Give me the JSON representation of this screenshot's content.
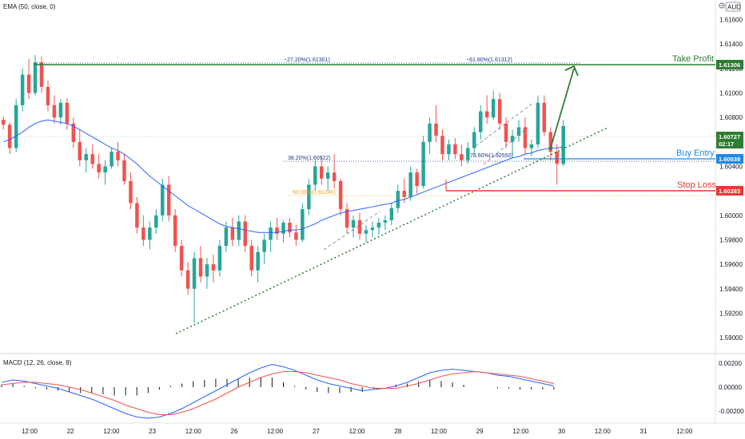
{
  "indicators": {
    "ema_label": "EMA (50, close, 0)",
    "macd_label": "MACD (12, 26, close, 9)"
  },
  "settings_icon": "gear-icon",
  "currency_badge": "AUD",
  "colors": {
    "up": "#26a69a",
    "down": "#ef5350",
    "ema": "#2962ff",
    "take_profit": "#2e7d32",
    "buy_entry": "#1e88e5",
    "stop_loss": "#e53935",
    "price_tag": "#2e7d32",
    "fib_blue": "#1e3a8a",
    "fib_orange": "#f9a825",
    "trendline": "#2e7d32"
  },
  "chart_data": [
    {
      "type": "candlestick",
      "ylim": [
        1.5887,
        1.6176
      ],
      "y_ticks": [
        1.59,
        1.592,
        1.594,
        1.596,
        1.598,
        1.6,
        1.602,
        1.604,
        1.606,
        1.608,
        1.61,
        1.612,
        1.614,
        1.616
      ],
      "y_tick_labels": [
        "1.59000",
        "1.59200",
        "1.59400",
        "1.59600",
        "1.59800",
        "1.60000",
        "1.60200",
        "1.60400",
        "1.60600",
        "1.60800",
        "1.61000",
        "1.61200",
        "1.61400",
        "1.61600"
      ],
      "x_tick_labels": [
        "12:00",
        "22",
        "12:00",
        "23",
        "12:00",
        "26",
        "12:00",
        "27",
        "12:00",
        "28",
        "12:00",
        "29",
        "12:00",
        "30",
        "12:00",
        "31",
        "12:00"
      ],
      "ohlc": [
        [
          1.6078,
          1.6081,
          1.607,
          1.6074
        ],
        [
          1.6074,
          1.6076,
          1.605,
          1.6055
        ],
        [
          1.6055,
          1.6095,
          1.6052,
          1.609
        ],
        [
          1.609,
          1.612,
          1.6085,
          1.6115
        ],
        [
          1.6115,
          1.6128,
          1.6095,
          1.61
        ],
        [
          1.61,
          1.6131,
          1.6098,
          1.6125
        ],
        [
          1.6125,
          1.613,
          1.61,
          1.6105
        ],
        [
          1.6105,
          1.611,
          1.6085,
          1.609
        ],
        [
          1.609,
          1.6098,
          1.6075,
          1.608
        ],
        [
          1.608,
          1.6095,
          1.6074,
          1.6092
        ],
        [
          1.6092,
          1.6096,
          1.607,
          1.6075
        ],
        [
          1.6075,
          1.608,
          1.6055,
          1.606
        ],
        [
          1.606,
          1.607,
          1.604,
          1.6045
        ],
        [
          1.6045,
          1.6055,
          1.6035,
          1.605
        ],
        [
          1.605,
          1.6058,
          1.6038,
          1.6042
        ],
        [
          1.6042,
          1.605,
          1.603,
          1.6035
        ],
        [
          1.6035,
          1.6045,
          1.6025,
          1.604
        ],
        [
          1.604,
          1.6055,
          1.6038,
          1.6052
        ],
        [
          1.6052,
          1.606,
          1.604,
          1.6045
        ],
        [
          1.6045,
          1.605,
          1.6025,
          1.6028
        ],
        [
          1.6028,
          1.6035,
          1.6005,
          1.601
        ],
        [
          1.601,
          1.6015,
          1.5985,
          1.599
        ],
        [
          1.599,
          1.6,
          1.5975,
          1.598
        ],
        [
          1.598,
          1.5995,
          1.5972,
          1.599
        ],
        [
          1.599,
          1.6005,
          1.5985,
          1.6
        ],
        [
          1.6,
          1.603,
          1.5995,
          1.6025
        ],
        [
          1.6025,
          1.6032,
          1.5995,
          1.6
        ],
        [
          1.6,
          1.6005,
          1.597,
          1.5975
        ],
        [
          1.5975,
          1.598,
          1.595,
          1.5955
        ],
        [
          1.5955,
          1.5962,
          1.5935,
          1.594
        ],
        [
          1.594,
          1.597,
          1.5912,
          1.5965
        ],
        [
          1.5965,
          1.5975,
          1.5945,
          1.595
        ],
        [
          1.595,
          1.5965,
          1.594,
          1.596
        ],
        [
          1.596,
          1.5968,
          1.5945,
          1.5955
        ],
        [
          1.5955,
          1.598,
          1.595,
          1.5975
        ],
        [
          1.5975,
          1.5995,
          1.597,
          1.599
        ],
        [
          1.599,
          1.5998,
          1.5975,
          1.598
        ],
        [
          1.598,
          1.6,
          1.5975,
          1.5995
        ],
        [
          1.5995,
          1.6,
          1.597,
          1.5975
        ],
        [
          1.5975,
          1.598,
          1.595,
          1.5955
        ],
        [
          1.5955,
          1.5975,
          1.5945,
          1.597
        ],
        [
          1.597,
          1.5985,
          1.596,
          1.598
        ],
        [
          1.598,
          1.5995,
          1.597,
          1.599
        ],
        [
          1.599,
          1.5998,
          1.598,
          1.5985
        ],
        [
          1.5985,
          1.5996,
          1.5978,
          1.5994
        ],
        [
          1.5994,
          1.5998,
          1.5982,
          1.5986
        ],
        [
          1.5986,
          1.5992,
          1.5975,
          1.598
        ],
        [
          1.598,
          1.601,
          1.5978,
          1.6005
        ],
        [
          1.6005,
          1.603,
          1.6,
          1.6025
        ],
        [
          1.6025,
          1.6045,
          1.602,
          1.604
        ],
        [
          1.604,
          1.6048,
          1.6025,
          1.603
        ],
        [
          1.603,
          1.604,
          1.602,
          1.6035
        ],
        [
          1.6035,
          1.605,
          1.6022,
          1.6028
        ],
        [
          1.6028,
          1.603,
          1.6,
          1.6005
        ],
        [
          1.6005,
          1.601,
          1.5985,
          1.599
        ],
        [
          1.599,
          1.6,
          1.5982,
          1.5996
        ],
        [
          1.5996,
          1.6002,
          1.598,
          1.5985
        ],
        [
          1.5985,
          1.5992,
          1.5978,
          1.5988
        ],
        [
          1.5988,
          1.5995,
          1.5982,
          1.599
        ],
        [
          1.599,
          1.5998,
          1.5984,
          1.5994
        ],
        [
          1.5994,
          1.6,
          1.5988,
          1.5996
        ],
        [
          1.5996,
          1.601,
          1.5992,
          1.6006
        ],
        [
          1.6006,
          1.6025,
          1.6002,
          1.602
        ],
        [
          1.602,
          1.603,
          1.601,
          1.6015
        ],
        [
          1.6015,
          1.604,
          1.6012,
          1.6035
        ],
        [
          1.6035,
          1.6038,
          1.6018,
          1.6024
        ],
        [
          1.6024,
          1.6065,
          1.6022,
          1.606
        ],
        [
          1.606,
          1.608,
          1.605,
          1.6075
        ],
        [
          1.6075,
          1.609,
          1.606,
          1.6065
        ],
        [
          1.6065,
          1.607,
          1.6045,
          1.605
        ],
        [
          1.605,
          1.6062,
          1.6045,
          1.6058
        ],
        [
          1.6058,
          1.6063,
          1.6046,
          1.605
        ],
        [
          1.605,
          1.6058,
          1.604,
          1.6045
        ],
        [
          1.6045,
          1.606,
          1.6042,
          1.6055
        ],
        [
          1.6055,
          1.6072,
          1.605,
          1.6068
        ],
        [
          1.6068,
          1.609,
          1.6062,
          1.6085
        ],
        [
          1.6085,
          1.6098,
          1.6075,
          1.608
        ],
        [
          1.608,
          1.6102,
          1.6078,
          1.6095
        ],
        [
          1.6095,
          1.61,
          1.607,
          1.6075
        ],
        [
          1.6075,
          1.608,
          1.6055,
          1.606
        ],
        [
          1.606,
          1.607,
          1.6048,
          1.6065
        ],
        [
          1.6065,
          1.6078,
          1.606,
          1.6072
        ],
        [
          1.6072,
          1.608,
          1.605,
          1.6055
        ],
        [
          1.6055,
          1.6062,
          1.6048,
          1.6058
        ],
        [
          1.6058,
          1.6098,
          1.6055,
          1.6092
        ],
        [
          1.6092,
          1.6098,
          1.6065,
          1.6068
        ],
        [
          1.6068,
          1.6072,
          1.6045,
          1.6052
        ],
        [
          1.6052,
          1.6058,
          1.6025,
          1.6042
        ],
        [
          1.6042,
          1.6078,
          1.604,
          1.6073
        ]
      ],
      "ema": [
        1.606,
        1.6062,
        1.6065,
        1.6068,
        1.6072,
        1.6075,
        1.6077,
        1.6078,
        1.6077,
        1.6076,
        1.6075,
        1.6073,
        1.607,
        1.6067,
        1.6064,
        1.6061,
        1.6058,
        1.6055,
        1.6053,
        1.605,
        1.6046,
        1.6042,
        1.6037,
        1.6032,
        1.6028,
        1.6024,
        1.602,
        1.6016,
        1.6012,
        1.6008,
        1.6005,
        1.6002,
        1.5999,
        1.5996,
        1.5993,
        1.5991,
        1.599,
        1.5989,
        1.5988,
        1.5987,
        1.5986,
        1.5986,
        1.5986,
        1.5986,
        1.5987,
        1.5988,
        1.5988,
        1.5989,
        1.5991,
        1.5993,
        1.5996,
        1.5998,
        1.6,
        1.6002,
        1.6003,
        1.6004,
        1.6005,
        1.6006,
        1.6007,
        1.6008,
        1.6009,
        1.601,
        1.6012,
        1.6013,
        1.6015,
        1.6017,
        1.6019,
        1.6021,
        1.6023,
        1.6025,
        1.6027,
        1.6029,
        1.6031,
        1.6033,
        1.6035,
        1.6037,
        1.6039,
        1.6041,
        1.6043,
        1.6045,
        1.6047,
        1.6048,
        1.605,
        1.6051,
        1.6053,
        1.6054,
        1.6055,
        1.6055,
        1.6056
      ]
    },
    {
      "type": "macd",
      "ylim": [
        -0.003,
        0.0028
      ],
      "y_ticks": [
        0.002,
        0,
        -0.002
      ],
      "y_tick_labels": [
        "0.00200",
        "0.00000",
        "-0.00200"
      ],
      "macd": [
        0.0004,
        0.0006,
        0.0005,
        0.0003,
        0.0001,
        -0.0001,
        -0.0004,
        -0.0007,
        -0.001,
        -0.0014,
        -0.0018,
        -0.0022,
        -0.0025,
        -0.0026,
        -0.0025,
        -0.0022,
        -0.0018,
        -0.0013,
        -0.0008,
        -0.0003,
        0.0002,
        0.0007,
        0.0012,
        0.0016,
        0.0019,
        0.0017,
        0.0014,
        0.001,
        0.0006,
        0.0003,
        0.0001,
        -0.0001,
        -0.0003,
        -0.0002,
        -0.0001,
        0.0001,
        0.0004,
        0.0008,
        0.0012,
        0.0014,
        0.0015,
        0.0014,
        0.0013,
        0.0012,
        0.001,
        0.0009,
        0.0007,
        0.0005,
        0.0003,
        0.0001
      ],
      "signal": [
        0.0002,
        0.0003,
        0.0004,
        0.0004,
        0.0003,
        0.0002,
        0.0,
        -0.0002,
        -0.0005,
        -0.0008,
        -0.0011,
        -0.0015,
        -0.0018,
        -0.0021,
        -0.0023,
        -0.0023,
        -0.0021,
        -0.0018,
        -0.0014,
        -0.001,
        -0.0005,
        0.0,
        0.0004,
        0.0008,
        0.0011,
        0.0013,
        0.0013,
        0.0012,
        0.001,
        0.0008,
        0.0006,
        0.0003,
        0.0001,
        -0.0001,
        -0.0001,
        -0.0001,
        0.0001,
        0.0003,
        0.0006,
        0.0009,
        0.0011,
        0.0012,
        0.0013,
        0.0012,
        0.0011,
        0.001,
        0.0009,
        0.0007,
        0.0005,
        0.0003
      ],
      "histogram": [
        0.0002,
        0.0003,
        0.0001,
        -0.0001,
        -0.0002,
        -0.0003,
        -0.0004,
        -0.0005,
        -0.0005,
        -0.0006,
        -0.0007,
        -0.0007,
        -0.0007,
        -0.0005,
        -0.0002,
        0.0001,
        0.0003,
        0.0005,
        0.0006,
        0.0007,
        0.0007,
        0.0007,
        0.0008,
        0.0008,
        0.0008,
        0.0004,
        0.0001,
        -0.0002,
        -0.0004,
        -0.0005,
        -0.0005,
        -0.0004,
        -0.0004,
        -0.0001,
        0.0,
        0.0002,
        0.0003,
        0.0005,
        0.0006,
        0.0005,
        0.0004,
        0.0002,
        0.0,
        0.0,
        -0.0001,
        -0.0001,
        -0.0002,
        -0.0002,
        -0.0002,
        -0.0002
      ]
    }
  ],
  "annotations": {
    "take_profit": {
      "label": "Take Profit",
      "price": 1.61306,
      "tag": "1.61306"
    },
    "buy_entry": {
      "label": "Buy Entry",
      "price": 1.60538,
      "tag": "1.60538"
    },
    "stop_loss": {
      "label": "Stop Loss",
      "price": 1.60283,
      "tag": "1.60283"
    },
    "last_price": {
      "price": 1.60727,
      "tag": "1.60727",
      "countdown": "02:17"
    },
    "fib_top_left": "−27.20%(1.61301)",
    "fib_top_right": "−61.80%(1.61312)",
    "fib_382": "38.20%(1.60522)",
    "fib_786": "78.60%(1.60550)",
    "fib_orange": "50.00%(1.60246)"
  }
}
